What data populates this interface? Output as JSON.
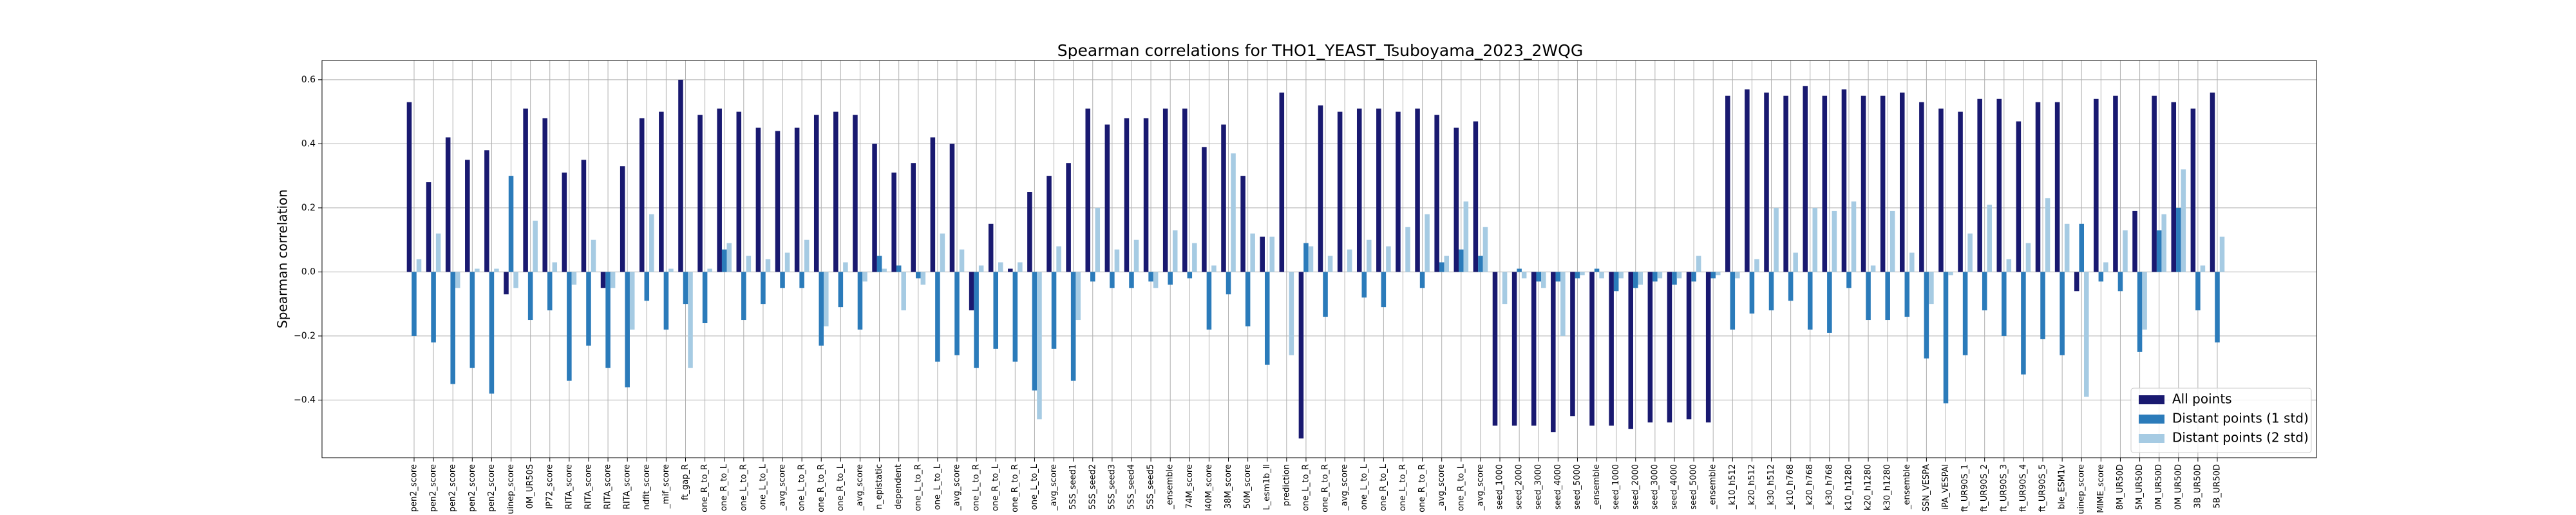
{
  "chart_data": {
    "type": "bar",
    "title": "Spearman correlations for THO1_YEAST_Tsuboyama_2023_2WQG",
    "ylabel": "Spearman correlation",
    "categories": [
      "pen2_score",
      "pen2_score",
      "pen2_score",
      "pen2_score",
      "pen2_score",
      "uinep_score",
      "0M_UR50S",
      "IP72_score",
      "RITA_score",
      "RITA_score",
      "RITA_score",
      "RITA_score",
      "ndfit_score",
      "_mif_score",
      "ft_gap_R",
      "one_R_to_R",
      "one_R_to_L",
      "one_L_to_R",
      "one_L_to_L",
      "_avg_score",
      "one_L_to_R",
      "one_R_to_R",
      "one_R_to_L",
      "_avg_score",
      "n_epistatic",
      "dependent",
      "one_L_to_R",
      "one_L_to_L",
      "_avg_score",
      "one_L_to_R",
      "one_R_to_L",
      "one_R_to_R",
      "one_L_to_L",
      "_avg_score",
      "5SS_seed1",
      "5SS_seed2",
      "5SS_seed3",
      "5SS_seed4",
      "5SS_seed5",
      "_ensemble",
      "74M_score",
      "l40M_score",
      "38M_score",
      "50M_score",
      "L_esm1b_ll",
      "prediction",
      "one_L_to_R",
      "one_R_to_R",
      "_avg_score",
      "one_L_to_L",
      "one_R_to_L",
      "one_L_to_R",
      "one_R_to_R",
      "_avg_score",
      "one_R_to_L",
      "_avg_score",
      "seed_1000",
      "seed_2000",
      "seed_3000",
      "seed_4000",
      "seed_5000",
      "_ensemble",
      "seed_1000",
      "seed_2000",
      "seed_3000",
      "seed_4000",
      "seed_5000",
      "_ensemble",
      "_k10_h512",
      "_k20_h512",
      "_k30_h512",
      "_k10_h768",
      "_k20_h768",
      "_k30_h768",
      "k10_h1280",
      "k20_h1280",
      "k30_h1280",
      "_ensemble",
      "SSN_VESPA",
      "iPA_VESPAl",
      "ft_UR90S_1",
      "ft_UR90S_2",
      "ft_UR90S_3",
      "ft_UR90S_4",
      "ft_UR90S_5",
      "ble_ESM1v",
      "uinep_score",
      "MIME_score",
      "8M_UR50D",
      "5M_UR50D",
      "0M_UR50D",
      "0M_UR50D",
      "3B_UR50D",
      "5B_UR50D"
    ],
    "series": [
      {
        "name": "All points",
        "color": "#191970",
        "values": [
          0.53,
          0.28,
          0.42,
          0.35,
          0.38,
          -0.07,
          0.51,
          0.48,
          0.31,
          0.35,
          -0.05,
          0.33,
          0.48,
          0.5,
          0.6,
          0.49,
          0.51,
          0.5,
          0.45,
          0.44,
          0.45,
          0.49,
          0.5,
          0.49,
          0.4,
          0.31,
          0.34,
          0.42,
          0.4,
          -0.12,
          0.15,
          0.01,
          0.25,
          0.3,
          0.34,
          0.51,
          0.46,
          0.48,
          0.48,
          0.51,
          0.51,
          0.39,
          0.46,
          0.3,
          0.11,
          0.56,
          -0.52,
          0.52,
          0.5,
          0.51,
          0.51,
          0.5,
          0.51,
          0.49,
          0.45,
          0.47,
          -0.48,
          -0.48,
          -0.48,
          -0.5,
          -0.45,
          -0.48,
          -0.48,
          -0.49,
          -0.47,
          -0.47,
          -0.46,
          -0.47,
          0.55,
          0.57,
          0.56,
          0.55,
          0.58,
          0.55,
          0.57,
          0.55,
          0.55,
          0.56,
          0.53,
          0.51,
          0.5,
          0.54,
          0.54,
          0.47,
          0.53,
          0.53,
          -0.06,
          0.54,
          0.55,
          0.19,
          0.55,
          0.53,
          0.51,
          0.56
        ]
      },
      {
        "name": "Distant points (1 std)",
        "color": "#2b7bba",
        "values": [
          -0.2,
          -0.22,
          -0.35,
          -0.3,
          -0.38,
          0.3,
          -0.15,
          -0.12,
          -0.34,
          -0.23,
          -0.3,
          -0.36,
          -0.09,
          -0.18,
          -0.1,
          -0.16,
          0.07,
          -0.15,
          -0.1,
          -0.05,
          -0.05,
          -0.23,
          -0.11,
          -0.18,
          0.05,
          0.02,
          -0.02,
          -0.28,
          -0.26,
          -0.3,
          -0.24,
          -0.28,
          -0.37,
          -0.24,
          -0.34,
          -0.03,
          -0.05,
          -0.05,
          -0.03,
          -0.04,
          -0.02,
          -0.18,
          -0.07,
          -0.17,
          -0.29,
          0.0,
          0.09,
          -0.14,
          0.0,
          -0.08,
          -0.11,
          0.0,
          -0.05,
          0.03,
          0.07,
          0.05,
          0.0,
          0.01,
          -0.03,
          -0.03,
          -0.02,
          0.01,
          -0.06,
          -0.05,
          -0.03,
          -0.04,
          -0.03,
          -0.02,
          -0.18,
          -0.13,
          -0.12,
          -0.09,
          -0.18,
          -0.19,
          -0.05,
          -0.15,
          -0.15,
          -0.14,
          -0.27,
          -0.41,
          -0.26,
          -0.12,
          -0.2,
          -0.32,
          -0.21,
          -0.26,
          0.15,
          -0.03,
          -0.06,
          -0.25,
          0.13,
          0.2,
          -0.12,
          -0.22
        ]
      },
      {
        "name": "Distant points (2 std)",
        "color": "#a6cbe3",
        "values": [
          0.04,
          0.12,
          -0.05,
          0.01,
          0.01,
          -0.05,
          0.16,
          0.03,
          -0.04,
          0.1,
          -0.05,
          -0.18,
          0.18,
          0.01,
          -0.3,
          0.01,
          0.09,
          0.05,
          0.04,
          0.06,
          0.1,
          -0.17,
          0.03,
          -0.03,
          0.01,
          -0.12,
          -0.04,
          0.12,
          0.07,
          0.02,
          0.03,
          0.03,
          -0.46,
          0.08,
          -0.15,
          0.2,
          0.07,
          0.1,
          -0.05,
          0.13,
          0.09,
          0.02,
          0.37,
          0.12,
          0.11,
          -0.26,
          0.08,
          0.05,
          0.07,
          0.1,
          0.08,
          0.14,
          0.18,
          0.05,
          0.22,
          0.14,
          -0.1,
          -0.02,
          -0.05,
          -0.2,
          -0.01,
          -0.02,
          -0.02,
          -0.04,
          -0.02,
          -0.02,
          0.05,
          -0.01,
          -0.02,
          0.04,
          0.2,
          0.06,
          0.2,
          0.19,
          0.22,
          0.02,
          0.19,
          0.06,
          -0.1,
          -0.01,
          0.12,
          0.21,
          0.04,
          0.09,
          0.23,
          0.15,
          -0.39,
          0.03,
          0.13,
          -0.18,
          0.18,
          0.32,
          0.02,
          0.11
        ]
      }
    ],
    "ylim": [
      -0.58,
      0.66
    ],
    "yticks": [
      {
        "value": -0.4,
        "label": "−0.4"
      },
      {
        "value": -0.2,
        "label": "−0.2"
      },
      {
        "value": 0,
        "label": "0.0"
      },
      0.2,
      0.4,
      0.6
    ],
    "grid": true,
    "legend": "lower right"
  }
}
